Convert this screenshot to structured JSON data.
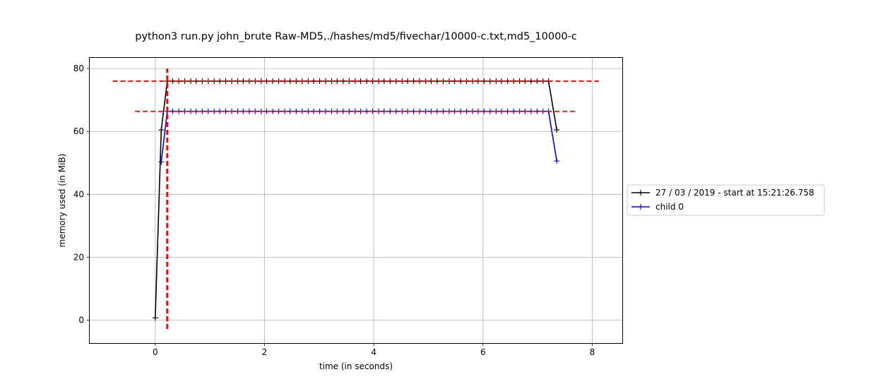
{
  "chart_data": {
    "type": "line",
    "title": "python3 run.py john_brute Raw-MD5,./hashes/md5/fivechar/10000-c.txt,md5_10000-c",
    "xlabel": "time (in seconds)",
    "ylabel": "memory used (in MiB)",
    "xlim": [
      -1.2,
      8.55
    ],
    "ylim": [
      -7.3,
      83.4
    ],
    "xticks": [
      0,
      2,
      4,
      6,
      8
    ],
    "yticks": [
      0,
      20,
      40,
      60,
      80
    ],
    "grid": true,
    "legend": {
      "placement": "outside-right"
    },
    "series": [
      {
        "name": "27 / 03 / 2019 - start at 15:21:26.758",
        "color": "#000000",
        "marker": "+",
        "x": [
          0.0,
          0.11,
          0.22,
          0.32,
          0.43,
          0.54,
          0.65,
          0.75,
          0.86,
          0.97,
          1.08,
          1.18,
          1.29,
          1.4,
          1.51,
          1.61,
          1.72,
          1.83,
          1.94,
          2.04,
          2.15,
          2.26,
          2.37,
          2.47,
          2.58,
          2.69,
          2.8,
          2.9,
          3.01,
          3.12,
          3.23,
          3.33,
          3.44,
          3.55,
          3.66,
          3.76,
          3.87,
          3.98,
          4.09,
          4.19,
          4.3,
          4.41,
          4.52,
          4.62,
          4.73,
          4.84,
          4.95,
          5.05,
          5.16,
          5.27,
          5.38,
          5.48,
          5.59,
          5.7,
          5.81,
          5.91,
          6.02,
          6.13,
          6.24,
          6.34,
          6.45,
          6.56,
          6.67,
          6.77,
          6.88,
          6.99,
          7.1,
          7.2,
          7.35
        ],
        "y": [
          0.7,
          60.5,
          76.0,
          76.0,
          76.0,
          76.0,
          76.0,
          76.0,
          76.0,
          76.0,
          76.0,
          76.0,
          76.0,
          76.0,
          76.0,
          76.0,
          76.0,
          76.0,
          76.0,
          76.0,
          76.0,
          76.0,
          76.0,
          76.0,
          76.0,
          76.0,
          76.0,
          76.0,
          76.0,
          76.0,
          76.0,
          76.0,
          76.0,
          76.0,
          76.0,
          76.0,
          76.0,
          76.0,
          76.0,
          76.0,
          76.0,
          76.0,
          76.0,
          76.0,
          76.0,
          76.0,
          76.0,
          76.0,
          76.0,
          76.0,
          76.0,
          76.0,
          76.0,
          76.0,
          76.0,
          76.0,
          76.0,
          76.0,
          76.0,
          76.0,
          76.0,
          76.0,
          76.0,
          76.0,
          76.0,
          76.0,
          76.0,
          76.0,
          60.5
        ]
      },
      {
        "name": "child 0",
        "color": "#0000ff",
        "marker": "+",
        "x": [
          0.11,
          0.22,
          0.32,
          0.43,
          0.54,
          0.65,
          0.75,
          0.86,
          0.97,
          1.08,
          1.18,
          1.29,
          1.4,
          1.51,
          1.61,
          1.72,
          1.83,
          1.94,
          2.04,
          2.15,
          2.26,
          2.37,
          2.47,
          2.58,
          2.69,
          2.8,
          2.9,
          3.01,
          3.12,
          3.23,
          3.33,
          3.44,
          3.55,
          3.66,
          3.76,
          3.87,
          3.98,
          4.09,
          4.19,
          4.3,
          4.41,
          4.52,
          4.62,
          4.73,
          4.84,
          4.95,
          5.05,
          5.16,
          5.27,
          5.38,
          5.48,
          5.59,
          5.7,
          5.81,
          5.91,
          6.02,
          6.13,
          6.24,
          6.34,
          6.45,
          6.56,
          6.67,
          6.77,
          6.88,
          6.99,
          7.1,
          7.2,
          7.35
        ],
        "y": [
          50.3,
          66.4,
          66.4,
          66.4,
          66.4,
          66.4,
          66.4,
          66.4,
          66.4,
          66.4,
          66.4,
          66.4,
          66.4,
          66.4,
          66.4,
          66.4,
          66.4,
          66.4,
          66.4,
          66.4,
          66.4,
          66.4,
          66.4,
          66.4,
          66.4,
          66.4,
          66.4,
          66.4,
          66.4,
          66.4,
          66.4,
          66.4,
          66.4,
          66.4,
          66.4,
          66.4,
          66.4,
          66.4,
          66.4,
          66.4,
          66.4,
          66.4,
          66.4,
          66.4,
          66.4,
          66.4,
          66.4,
          66.4,
          66.4,
          66.4,
          66.4,
          66.4,
          66.4,
          66.4,
          66.4,
          66.4,
          66.4,
          66.4,
          66.4,
          66.4,
          66.4,
          66.4,
          66.4,
          66.4,
          66.4,
          66.4,
          66.4,
          50.6
        ]
      }
    ],
    "annotations": [
      {
        "kind": "hline",
        "y": 76.0,
        "x_from": -0.78,
        "x_to": 8.12,
        "color": "#ff0000",
        "style": "dashed"
      },
      {
        "kind": "hline",
        "y": 66.4,
        "x_from": -0.37,
        "x_to": 7.7,
        "color": "#ff0000",
        "style": "dashed"
      },
      {
        "kind": "vline",
        "x": 0.22,
        "y_from": -2.8,
        "y_to": 80.0,
        "color": "#ff0000",
        "style": "dashed"
      }
    ]
  }
}
